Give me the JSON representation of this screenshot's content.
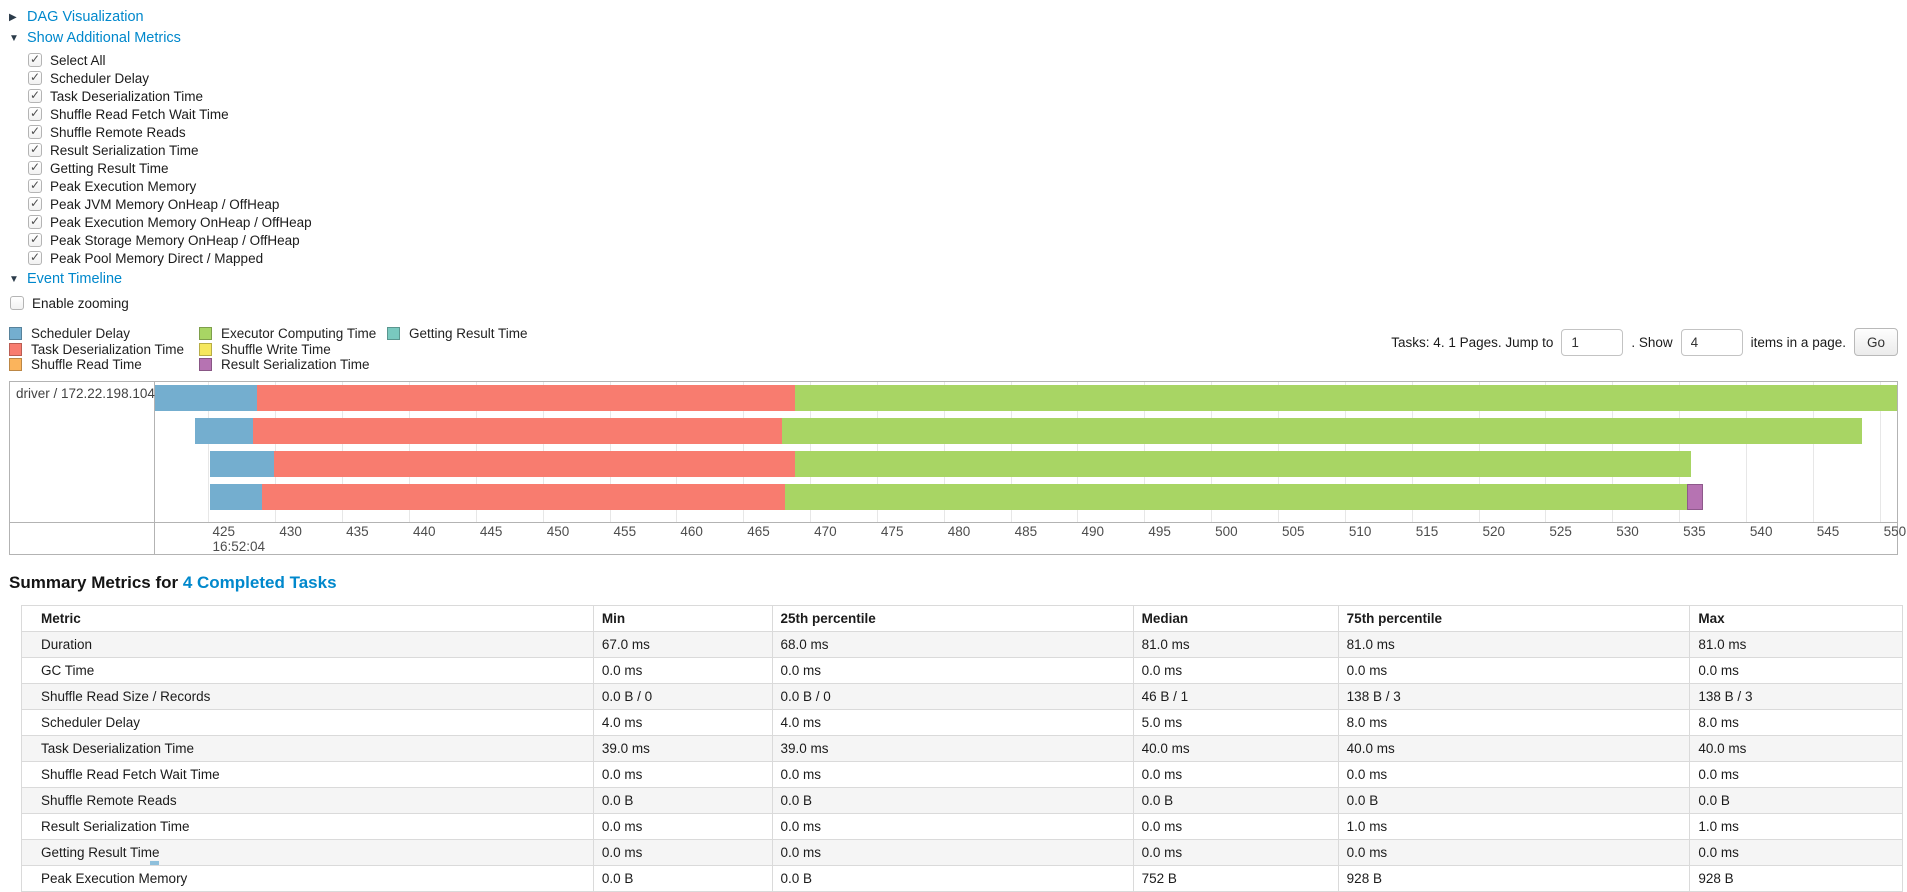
{
  "colors": {
    "link": "#0088cc",
    "scheduler_delay": "#74AECF",
    "task_deserialization": "#F87C6F",
    "shuffle_read": "#FBB45C",
    "executor_computing": "#A8D564",
    "shuffle_write": "#F5E75E",
    "result_serialization": "#B673B2",
    "getting_result": "#79C9BF"
  },
  "accordions": {
    "dag": {
      "label": "DAG Visualization",
      "state": "collapsed",
      "arrow": "▶"
    },
    "metrics": {
      "label": "Show Additional Metrics",
      "state": "expanded",
      "arrow": "▼"
    },
    "timeline": {
      "label": "Event Timeline",
      "state": "expanded",
      "arrow": "▼"
    }
  },
  "metric_checkboxes": [
    {
      "label": "Select All",
      "checked": true
    },
    {
      "label": "Scheduler Delay",
      "checked": true
    },
    {
      "label": "Task Deserialization Time",
      "checked": true
    },
    {
      "label": "Shuffle Read Fetch Wait Time",
      "checked": true
    },
    {
      "label": "Shuffle Remote Reads",
      "checked": true
    },
    {
      "label": "Result Serialization Time",
      "checked": true
    },
    {
      "label": "Getting Result Time",
      "checked": true
    },
    {
      "label": "Peak Execution Memory",
      "checked": true
    },
    {
      "label": "Peak JVM Memory OnHeap / OffHeap",
      "checked": true
    },
    {
      "label": "Peak Execution Memory OnHeap / OffHeap",
      "checked": true
    },
    {
      "label": "Peak Storage Memory OnHeap / OffHeap",
      "checked": true
    },
    {
      "label": "Peak Pool Memory Direct / Mapped",
      "checked": true
    }
  ],
  "enable_zooming": {
    "label": "Enable zooming",
    "checked": false
  },
  "legend_columns": [
    [
      {
        "label": "Scheduler Delay",
        "color_key": "scheduler_delay"
      },
      {
        "label": "Task Deserialization Time",
        "color_key": "task_deserialization"
      },
      {
        "label": "Shuffle Read Time",
        "color_key": "shuffle_read"
      }
    ],
    [
      {
        "label": "Executor Computing Time",
        "color_key": "executor_computing"
      },
      {
        "label": "Shuffle Write Time",
        "color_key": "shuffle_write"
      },
      {
        "label": "Result Serialization Time",
        "color_key": "result_serialization"
      }
    ],
    [
      {
        "label": "Getting Result Time",
        "color_key": "getting_result"
      }
    ]
  ],
  "pagination": {
    "prefix": "Tasks: 4. 1 Pages. Jump to",
    "jump_value": "1",
    "mid": ". Show",
    "show_value": "4",
    "suffix": "items in a page.",
    "go_label": "Go"
  },
  "chart_data": {
    "type": "timeline",
    "group_label": "driver / 172.22.198.104",
    "axis": {
      "min": 421.0,
      "max": 551.3,
      "ticks": [
        425,
        430,
        435,
        440,
        445,
        450,
        455,
        460,
        465,
        470,
        475,
        480,
        485,
        490,
        495,
        500,
        505,
        510,
        515,
        520,
        525,
        530,
        535,
        540,
        545,
        550
      ],
      "base_time_label": "16:52:04",
      "units": "ms offset within 16:52:04"
    },
    "tasks": [
      {
        "start": 421.0,
        "segments": [
          {
            "type": "scheduler_delay",
            "end": 428.6
          },
          {
            "type": "task_deserialization",
            "end": 468.9
          },
          {
            "type": "executor_computing",
            "end": 551.5
          }
        ]
      },
      {
        "start": 424.0,
        "segments": [
          {
            "type": "scheduler_delay",
            "end": 428.3
          },
          {
            "type": "task_deserialization",
            "end": 467.9
          },
          {
            "type": "executor_computing",
            "end": 548.7
          }
        ]
      },
      {
        "start": 425.1,
        "segments": [
          {
            "type": "scheduler_delay",
            "end": 429.9
          },
          {
            "type": "task_deserialization",
            "end": 468.9
          },
          {
            "type": "executor_computing",
            "end": 535.9
          }
        ]
      },
      {
        "start": 425.1,
        "segments": [
          {
            "type": "scheduler_delay",
            "end": 429.0
          },
          {
            "type": "task_deserialization",
            "end": 468.1
          },
          {
            "type": "executor_computing",
            "end": 535.6
          },
          {
            "type": "result_serialization",
            "end": 536.8
          }
        ]
      }
    ]
  },
  "summary": {
    "title_prefix": "Summary Metrics for ",
    "title_link": "4 Completed Tasks",
    "table": {
      "headers": [
        "Metric",
        "Min",
        "25th percentile",
        "Median",
        "75th percentile",
        "Max"
      ],
      "col_widths_pct": [
        30.4,
        9.5,
        19.2,
        10.9,
        18.7,
        11.3
      ],
      "rows": [
        [
          "Duration",
          "67.0 ms",
          "68.0 ms",
          "81.0 ms",
          "81.0 ms",
          "81.0 ms"
        ],
        [
          "GC Time",
          "0.0 ms",
          "0.0 ms",
          "0.0 ms",
          "0.0 ms",
          "0.0 ms"
        ],
        [
          "Shuffle Read Size / Records",
          "0.0 B / 0",
          "0.0 B / 0",
          "46 B / 1",
          "138 B / 3",
          "138 B / 3"
        ],
        [
          "Scheduler Delay",
          "4.0 ms",
          "4.0 ms",
          "5.0 ms",
          "8.0 ms",
          "8.0 ms"
        ],
        [
          "Task Deserialization Time",
          "39.0 ms",
          "39.0 ms",
          "40.0 ms",
          "40.0 ms",
          "40.0 ms"
        ],
        [
          "Shuffle Read Fetch Wait Time",
          "0.0 ms",
          "0.0 ms",
          "0.0 ms",
          "0.0 ms",
          "0.0 ms"
        ],
        [
          "Shuffle Remote Reads",
          "0.0 B",
          "0.0 B",
          "0.0 B",
          "0.0 B",
          "0.0 B"
        ],
        [
          "Result Serialization Time",
          "0.0 ms",
          "0.0 ms",
          "0.0 ms",
          "1.0 ms",
          "1.0 ms"
        ],
        [
          "Getting Result Time",
          "0.0 ms",
          "0.0 ms",
          "0.0 ms",
          "0.0 ms",
          "0.0 ms"
        ],
        [
          "Peak Execution Memory",
          "0.0 B",
          "0.0 B",
          "752 B",
          "928 B",
          "928 B"
        ]
      ]
    }
  }
}
